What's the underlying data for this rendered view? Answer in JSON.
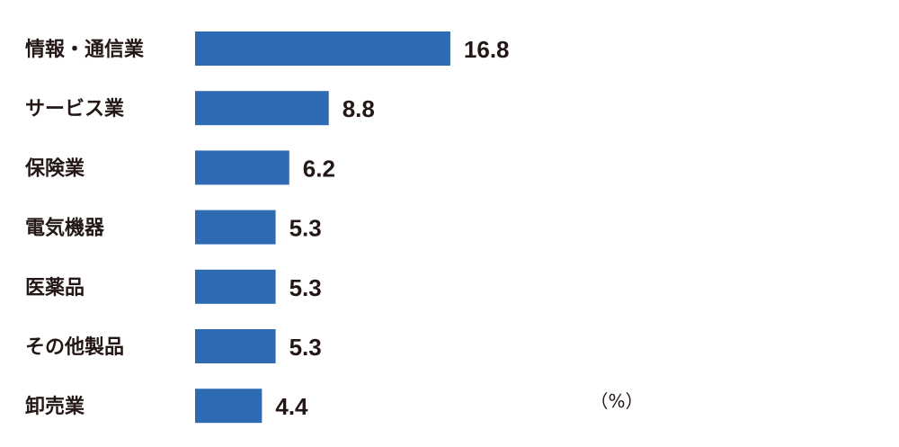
{
  "chart_data": {
    "type": "bar",
    "orientation": "horizontal",
    "categories": [
      "情報・通信業",
      "サービス業",
      "保険業",
      "電気機器",
      "医薬品",
      "その他製品",
      "卸売業"
    ],
    "values": [
      16.8,
      8.8,
      6.2,
      5.3,
      5.3,
      5.3,
      4.4
    ],
    "value_labels": [
      "16.8",
      "8.8",
      "6.2",
      "5.3",
      "5.3",
      "5.3",
      "4.4"
    ],
    "unit": "（%）",
    "bar_color": "#2f6bb3",
    "grid": false,
    "legend": "none"
  }
}
